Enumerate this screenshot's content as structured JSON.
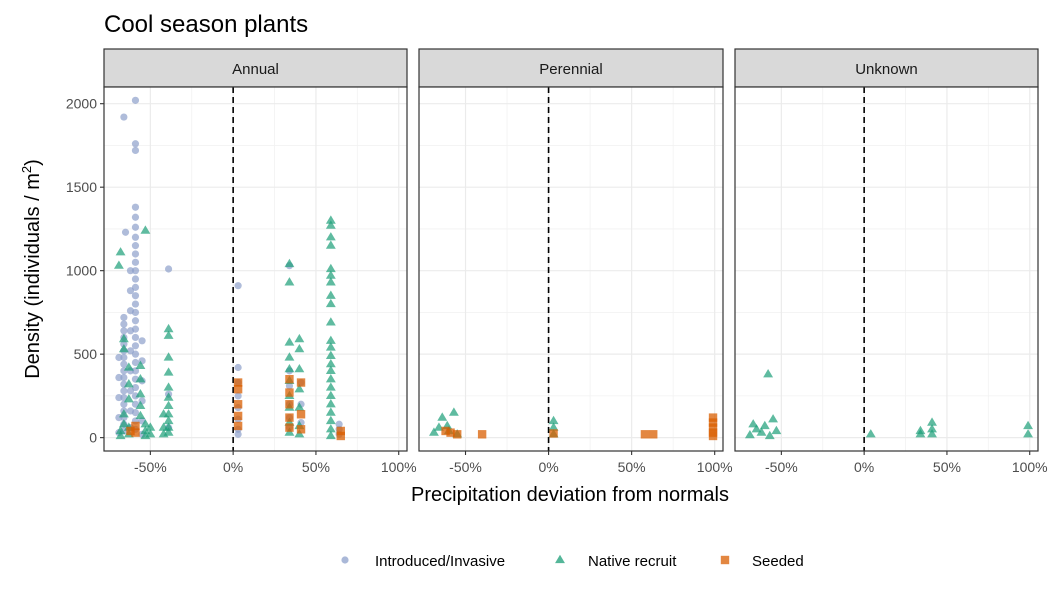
{
  "chart_data": {
    "type": "scatter",
    "title": "Cool season plants",
    "xlabel": "Precipitation deviation from normals",
    "ylabel_main": "Density (individuals / m",
    "ylabel_sup": "2",
    "ylabel_close": ")",
    "xlim": [
      -0.78,
      1.05
    ],
    "ylim": [
      -80,
      2100
    ],
    "x_ticks": [
      -0.5,
      0,
      0.5,
      1.0
    ],
    "x_tick_labels": [
      "-50%",
      "0%",
      "50%",
      "100%"
    ],
    "y_ticks": [
      0,
      500,
      1000,
      1500,
      2000
    ],
    "y_tick_labels": [
      "0",
      "500",
      "1000",
      "1500",
      "2000"
    ],
    "reference_line_x": 0,
    "grid": true,
    "legend_position": "bottom",
    "facets": [
      {
        "label": "Annual",
        "series": [
          {
            "name": "Introduced/Invasive",
            "points": [
              [
                -0.66,
                1920
              ],
              [
                -0.59,
                2020
              ],
              [
                -0.59,
                1760
              ],
              [
                -0.59,
                1720
              ],
              [
                -0.59,
                1380
              ],
              [
                -0.59,
                1320
              ],
              [
                -0.59,
                1260
              ],
              [
                -0.65,
                1230
              ],
              [
                -0.59,
                1200
              ],
              [
                -0.59,
                1150
              ],
              [
                -0.59,
                1100
              ],
              [
                -0.59,
                1050
              ],
              [
                -0.59,
                1000
              ],
              [
                -0.59,
                950
              ],
              [
                -0.59,
                900
              ],
              [
                -0.59,
                850
              ],
              [
                -0.59,
                800
              ],
              [
                -0.59,
                750
              ],
              [
                -0.59,
                700
              ],
              [
                -0.59,
                650
              ],
              [
                -0.59,
                600
              ],
              [
                -0.59,
                550
              ],
              [
                -0.59,
                500
              ],
              [
                -0.59,
                450
              ],
              [
                -0.59,
                400
              ],
              [
                -0.59,
                350
              ],
              [
                -0.59,
                300
              ],
              [
                -0.59,
                250
              ],
              [
                -0.59,
                200
              ],
              [
                -0.59,
                150
              ],
              [
                -0.59,
                100
              ],
              [
                -0.59,
                50
              ],
              [
                -0.66,
                720
              ],
              [
                -0.66,
                680
              ],
              [
                -0.66,
                640
              ],
              [
                -0.66,
                600
              ],
              [
                -0.66,
                560
              ],
              [
                -0.66,
                520
              ],
              [
                -0.66,
                480
              ],
              [
                -0.66,
                440
              ],
              [
                -0.66,
                400
              ],
              [
                -0.66,
                360
              ],
              [
                -0.66,
                320
              ],
              [
                -0.66,
                280
              ],
              [
                -0.66,
                240
              ],
              [
                -0.66,
                200
              ],
              [
                -0.66,
                160
              ],
              [
                -0.66,
                120
              ],
              [
                -0.66,
                80
              ],
              [
                -0.66,
                40
              ],
              [
                -0.62,
                1000
              ],
              [
                -0.62,
                880
              ],
              [
                -0.62,
                760
              ],
              [
                -0.62,
                640
              ],
              [
                -0.62,
                520
              ],
              [
                -0.62,
                400
              ],
              [
                -0.62,
                280
              ],
              [
                -0.62,
                160
              ],
              [
                -0.62,
                60
              ],
              [
                -0.69,
                480
              ],
              [
                -0.69,
                360
              ],
              [
                -0.69,
                240
              ],
              [
                -0.69,
                120
              ],
              [
                -0.69,
                30
              ],
              [
                -0.55,
                580
              ],
              [
                -0.55,
                460
              ],
              [
                -0.55,
                340
              ],
              [
                -0.55,
                220
              ],
              [
                -0.55,
                100
              ],
              [
                -0.55,
                20
              ],
              [
                -0.39,
                1010
              ],
              [
                -0.39,
                260
              ],
              [
                -0.39,
                60
              ],
              [
                0.03,
                910
              ],
              [
                0.03,
                420
              ],
              [
                0.03,
                330
              ],
              [
                0.03,
                250
              ],
              [
                0.03,
                180
              ],
              [
                0.03,
                110
              ],
              [
                0.03,
                50
              ],
              [
                0.03,
                20
              ],
              [
                0.34,
                1030
              ],
              [
                0.34,
                400
              ],
              [
                0.34,
                310
              ],
              [
                0.34,
                200
              ],
              [
                0.34,
                120
              ],
              [
                0.34,
                60
              ],
              [
                0.41,
                330
              ],
              [
                0.41,
                200
              ],
              [
                0.41,
                90
              ],
              [
                0.64,
                80
              ],
              [
                0.64,
                50
              ],
              [
                0.64,
                20
              ]
            ]
          },
          {
            "name": "Native recruit",
            "points": [
              [
                -0.68,
                1110
              ],
              [
                -0.69,
                1030
              ],
              [
                -0.53,
                1240
              ],
              [
                -0.66,
                590
              ],
              [
                -0.66,
                530
              ],
              [
                -0.63,
                420
              ],
              [
                -0.63,
                320
              ],
              [
                -0.63,
                230
              ],
              [
                -0.66,
                140
              ],
              [
                -0.66,
                80
              ],
              [
                -0.68,
                40
              ],
              [
                -0.68,
                10
              ],
              [
                -0.63,
                60
              ],
              [
                -0.63,
                20
              ],
              [
                -0.56,
                430
              ],
              [
                -0.56,
                350
              ],
              [
                -0.56,
                260
              ],
              [
                -0.56,
                190
              ],
              [
                -0.56,
                130
              ],
              [
                -0.53,
                80
              ],
              [
                -0.53,
                40
              ],
              [
                -0.53,
                10
              ],
              [
                -0.5,
                60
              ],
              [
                -0.5,
                20
              ],
              [
                -0.39,
                650
              ],
              [
                -0.39,
                610
              ],
              [
                -0.39,
                480
              ],
              [
                -0.39,
                390
              ],
              [
                -0.39,
                300
              ],
              [
                -0.39,
                240
              ],
              [
                -0.39,
                190
              ],
              [
                -0.39,
                140
              ],
              [
                -0.39,
                100
              ],
              [
                -0.39,
                60
              ],
              [
                -0.39,
                30
              ],
              [
                -0.42,
                140
              ],
              [
                -0.42,
                60
              ],
              [
                -0.42,
                20
              ],
              [
                0.34,
                1040
              ],
              [
                0.34,
                930
              ],
              [
                0.34,
                570
              ],
              [
                0.34,
                480
              ],
              [
                0.34,
                410
              ],
              [
                0.34,
                340
              ],
              [
                0.34,
                250
              ],
              [
                0.34,
                180
              ],
              [
                0.34,
                90
              ],
              [
                0.34,
                30
              ],
              [
                0.4,
                590
              ],
              [
                0.4,
                530
              ],
              [
                0.4,
                410
              ],
              [
                0.4,
                290
              ],
              [
                0.4,
                180
              ],
              [
                0.4,
                70
              ],
              [
                0.4,
                20
              ],
              [
                0.59,
                1300
              ],
              [
                0.59,
                1270
              ],
              [
                0.59,
                1200
              ],
              [
                0.59,
                1150
              ],
              [
                0.59,
                1010
              ],
              [
                0.59,
                970
              ],
              [
                0.59,
                930
              ],
              [
                0.59,
                850
              ],
              [
                0.59,
                800
              ],
              [
                0.59,
                690
              ],
              [
                0.59,
                580
              ],
              [
                0.59,
                540
              ],
              [
                0.59,
                490
              ],
              [
                0.59,
                440
              ],
              [
                0.59,
                400
              ],
              [
                0.59,
                350
              ],
              [
                0.59,
                300
              ],
              [
                0.59,
                250
              ],
              [
                0.59,
                200
              ],
              [
                0.59,
                150
              ],
              [
                0.59,
                100
              ],
              [
                0.59,
                50
              ],
              [
                0.59,
                10
              ]
            ]
          },
          {
            "name": "Seeded",
            "points": [
              [
                0.03,
                330
              ],
              [
                0.03,
                290
              ],
              [
                0.03,
                200
              ],
              [
                0.03,
                130
              ],
              [
                0.03,
                70
              ],
              [
                -0.59,
                70
              ],
              [
                -0.59,
                30
              ],
              [
                -0.62,
                40
              ],
              [
                0.34,
                350
              ],
              [
                0.34,
                270
              ],
              [
                0.34,
                200
              ],
              [
                0.34,
                120
              ],
              [
                0.34,
                60
              ],
              [
                0.41,
                330
              ],
              [
                0.41,
                140
              ],
              [
                0.41,
                50
              ],
              [
                0.65,
                40
              ],
              [
                0.65,
                10
              ]
            ]
          }
        ]
      },
      {
        "label": "Perennial",
        "series": [
          {
            "name": "Introduced/Invasive",
            "points": []
          },
          {
            "name": "Native recruit",
            "points": [
              [
                -0.64,
                120
              ],
              [
                -0.61,
                70
              ],
              [
                -0.57,
                150
              ],
              [
                -0.69,
                30
              ],
              [
                -0.6,
                40
              ],
              [
                -0.55,
                20
              ],
              [
                -0.66,
                60
              ],
              [
                0.03,
                100
              ],
              [
                0.03,
                60
              ],
              [
                0.03,
                20
              ]
            ]
          },
          {
            "name": "Seeded",
            "points": [
              [
                -0.59,
                30
              ],
              [
                -0.55,
                20
              ],
              [
                -0.62,
                40
              ],
              [
                -0.4,
                20
              ],
              [
                0.03,
                25
              ],
              [
                0.58,
                20
              ],
              [
                0.63,
                20
              ],
              [
                0.99,
                120
              ],
              [
                0.99,
                90
              ],
              [
                0.99,
                60
              ],
              [
                0.99,
                30
              ],
              [
                0.99,
                10
              ]
            ]
          }
        ]
      },
      {
        "label": "Unknown",
        "series": [
          {
            "name": "Introduced/Invasive",
            "points": []
          },
          {
            "name": "Native recruit",
            "points": [
              [
                -0.58,
                380
              ],
              [
                -0.55,
                110
              ],
              [
                -0.6,
                70
              ],
              [
                -0.65,
                50
              ],
              [
                -0.62,
                30
              ],
              [
                -0.67,
                80
              ],
              [
                -0.53,
                40
              ],
              [
                -0.69,
                15
              ],
              [
                -0.57,
                10
              ],
              [
                0.04,
                20
              ],
              [
                0.34,
                40
              ],
              [
                0.34,
                20
              ],
              [
                0.41,
                90
              ],
              [
                0.41,
                50
              ],
              [
                0.41,
                20
              ],
              [
                0.99,
                70
              ],
              [
                0.99,
                20
              ]
            ]
          },
          {
            "name": "Seeded",
            "points": []
          }
        ]
      }
    ],
    "legend": [
      {
        "name": "Introduced/Invasive",
        "shape": "circle",
        "color": "#8da0cb"
      },
      {
        "name": "Native recruit",
        "shape": "triangle",
        "color": "#1b9e77"
      },
      {
        "name": "Seeded",
        "shape": "square",
        "color": "#d95f02"
      }
    ]
  }
}
